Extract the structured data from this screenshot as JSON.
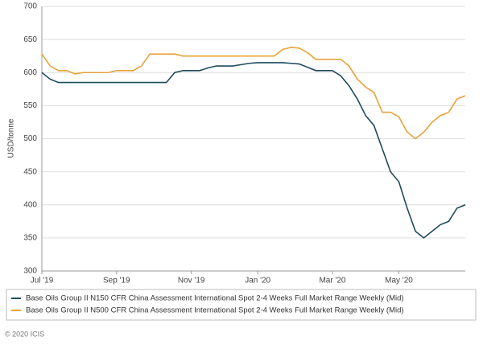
{
  "chart_data": {
    "type": "line",
    "y_label": "USD/tonne",
    "categories": [
      "Jul '19",
      null,
      null,
      null,
      null,
      null,
      null,
      null,
      null,
      "Sep '19",
      null,
      null,
      null,
      null,
      null,
      null,
      null,
      null,
      "Nov '19",
      null,
      null,
      null,
      null,
      null,
      null,
      null,
      "Jan '20",
      null,
      null,
      null,
      null,
      null,
      null,
      null,
      null,
      "Mar '20",
      null,
      null,
      null,
      null,
      null,
      null,
      null,
      "May '20",
      null,
      null,
      null,
      null,
      null,
      null,
      null,
      null
    ],
    "series": [
      {
        "name": "Base Oils Group II N150 CFR China Assessment International Spot 2-4 Weeks Full Market Range Weekly (Mid)",
        "color": "#1f4b5c",
        "values": [
          600,
          590,
          585,
          585,
          585,
          585,
          585,
          585,
          585,
          585,
          585,
          585,
          585,
          585,
          585,
          585,
          600,
          603,
          603,
          603,
          607,
          610,
          610,
          610,
          612,
          614,
          615,
          615,
          615,
          615,
          614,
          613,
          608,
          603,
          603,
          603,
          595,
          580,
          560,
          535,
          520,
          485,
          450,
          435,
          395,
          360,
          350,
          360,
          370,
          375,
          395,
          400
        ]
      },
      {
        "name": "Base Oils Group II N500 CFR China Assessment International Spot 2-4 Weeks Full Market Range Weekly (Mid)",
        "color": "#e9a23b",
        "values": [
          628,
          610,
          603,
          603,
          598,
          600,
          600,
          600,
          600,
          603,
          603,
          603,
          610,
          628,
          628,
          628,
          628,
          625,
          625,
          625,
          625,
          625,
          625,
          625,
          625,
          625,
          625,
          625,
          625,
          635,
          638,
          637,
          630,
          620,
          620,
          620,
          620,
          610,
          590,
          578,
          570,
          540,
          540,
          533,
          510,
          500,
          510,
          525,
          535,
          540,
          560,
          565
        ]
      }
    ],
    "ylim": [
      300,
      700
    ],
    "yticks": [
      300,
      350,
      400,
      450,
      500,
      550,
      600,
      650,
      700
    ],
    "grid": true,
    "footer": "© 2020 ICIS"
  }
}
